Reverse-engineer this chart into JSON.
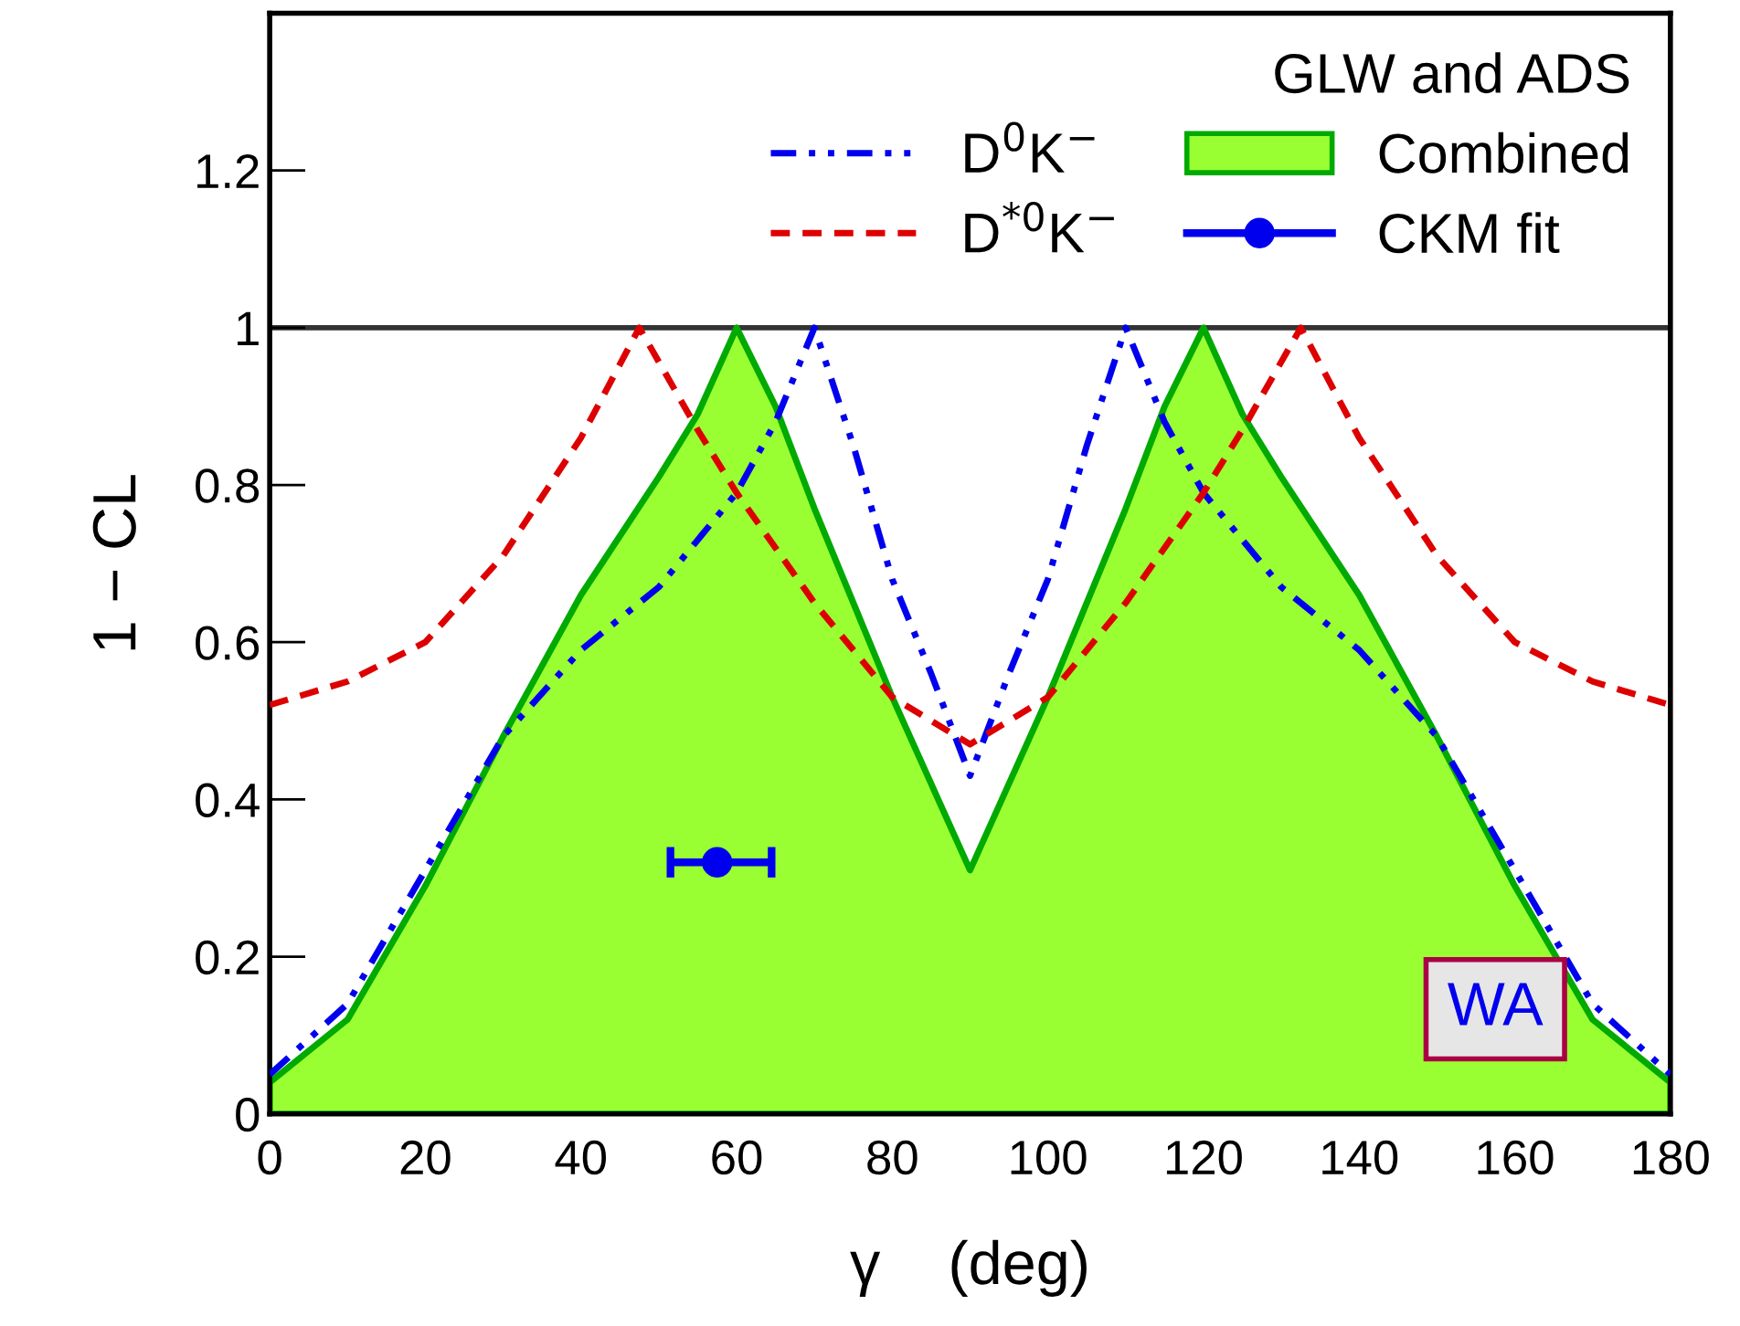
{
  "chart_data": {
    "type": "line",
    "xlabel": "γ    (deg)",
    "ylabel": "1 − CL",
    "legend_title": "GLW and ADS",
    "xlim": [
      0,
      180
    ],
    "ylim": [
      0,
      1.4
    ],
    "xticks": [
      0,
      20,
      40,
      60,
      80,
      100,
      120,
      140,
      160,
      180
    ],
    "yticks": [
      0,
      0.2,
      0.4,
      0.6,
      0.8,
      1,
      1.2
    ],
    "grid": false,
    "legend": "top right",
    "series": [
      {
        "name": "D$^{0}$K$^{−}$",
        "color": "#0000ee",
        "line_style": "dashdot",
        "x": [
          0,
          10,
          20,
          30,
          40,
          50,
          60,
          65,
          70,
          75,
          80,
          85,
          90,
          95,
          100,
          105,
          110,
          115,
          120,
          130,
          140,
          150,
          160,
          170,
          180
        ],
        "values": [
          0.05,
          0.14,
          0.31,
          0.48,
          0.59,
          0.67,
          0.79,
          0.88,
          1.0,
          0.85,
          0.68,
          0.56,
          0.43,
          0.56,
          0.68,
          0.85,
          1.0,
          0.88,
          0.79,
          0.67,
          0.59,
          0.48,
          0.31,
          0.14,
          0.05
        ]
      },
      {
        "name": "D$^{*0}$K$^{−}$",
        "color": "#dd0000",
        "line_style": "dashed",
        "x": [
          0,
          10,
          20,
          30,
          40,
          47.5,
          55,
          60,
          70,
          80,
          85,
          90,
          95,
          100,
          110,
          120,
          125,
          132.5,
          140,
          150,
          160,
          170,
          180
        ],
        "values": [
          0.52,
          0.55,
          0.6,
          0.71,
          0.86,
          1.0,
          0.87,
          0.79,
          0.65,
          0.53,
          0.5,
          0.47,
          0.5,
          0.53,
          0.65,
          0.79,
          0.87,
          1.0,
          0.86,
          0.71,
          0.6,
          0.55,
          0.52
        ]
      },
      {
        "name": "Combined",
        "type": "area",
        "color": "#99ff33",
        "x": [
          0,
          10,
          20,
          30,
          40,
          50,
          55,
          60,
          65,
          70,
          80,
          85,
          90,
          95,
          100,
          110,
          115,
          120,
          125,
          130,
          140,
          150,
          160,
          170,
          180
        ],
        "values": [
          0.04,
          0.12,
          0.29,
          0.48,
          0.66,
          0.81,
          0.89,
          1.0,
          0.9,
          0.77,
          0.53,
          0.42,
          0.31,
          0.42,
          0.53,
          0.77,
          0.9,
          1.0,
          0.89,
          0.81,
          0.66,
          0.48,
          0.29,
          0.12,
          0.04
        ]
      },
      {
        "name": "CKM fit",
        "type": "scatter",
        "color": "#0000ee",
        "marker": "circle",
        "x": [
          57.5
        ],
        "values": [
          0.32
        ],
        "xerrors": [
          [
            51.5,
            64.5
          ]
        ]
      }
    ],
    "ref_lines": [
      {
        "axis": "y",
        "value": 1,
        "color": "#333333"
      }
    ],
    "annotations": [
      "WA"
    ]
  }
}
